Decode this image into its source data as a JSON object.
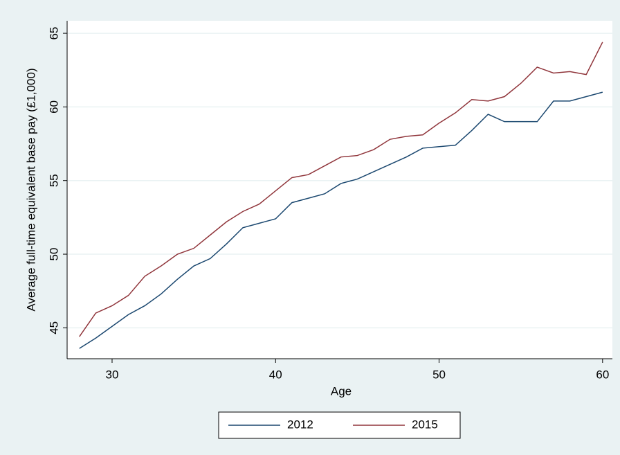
{
  "chart_data": {
    "type": "line",
    "x_label": "Age",
    "y_label": "Average full-time equivalent base pay (£1,000)",
    "x": [
      28,
      29,
      30,
      31,
      32,
      33,
      34,
      35,
      36,
      37,
      38,
      39,
      40,
      41,
      42,
      43,
      44,
      45,
      46,
      47,
      48,
      49,
      50,
      51,
      52,
      53,
      54,
      55,
      56,
      57,
      58,
      59,
      60
    ],
    "series": [
      {
        "name": "2012",
        "color": "#1a476f",
        "values": [
          43.6,
          44.3,
          45.1,
          45.9,
          46.5,
          47.3,
          48.3,
          49.2,
          49.7,
          50.7,
          51.8,
          52.1,
          52.4,
          53.5,
          53.8,
          54.1,
          54.8,
          55.1,
          55.6,
          56.1,
          56.6,
          57.2,
          57.3,
          57.4,
          58.4,
          59.5,
          59.0,
          59.0,
          59.0,
          60.4,
          60.4,
          60.7,
          61.0
        ]
      },
      {
        "name": "2015",
        "color": "#90353b",
        "values": [
          44.4,
          46.0,
          46.5,
          47.2,
          48.5,
          49.2,
          50.0,
          50.4,
          51.3,
          52.2,
          52.9,
          53.4,
          54.3,
          55.2,
          55.4,
          56.0,
          56.6,
          56.7,
          57.1,
          57.8,
          58.0,
          58.1,
          58.9,
          59.6,
          60.5,
          60.4,
          60.7,
          61.6,
          62.7,
          62.3,
          62.4,
          62.2,
          64.4
        ]
      }
    ],
    "xlim": [
      27.25,
      60.6
    ],
    "xticks": [
      30,
      40,
      50,
      60
    ],
    "ylim": [
      42.9,
      65.85
    ],
    "yticks": [
      45,
      50,
      55,
      60,
      65
    ],
    "grid": true,
    "legend": "bottom"
  }
}
